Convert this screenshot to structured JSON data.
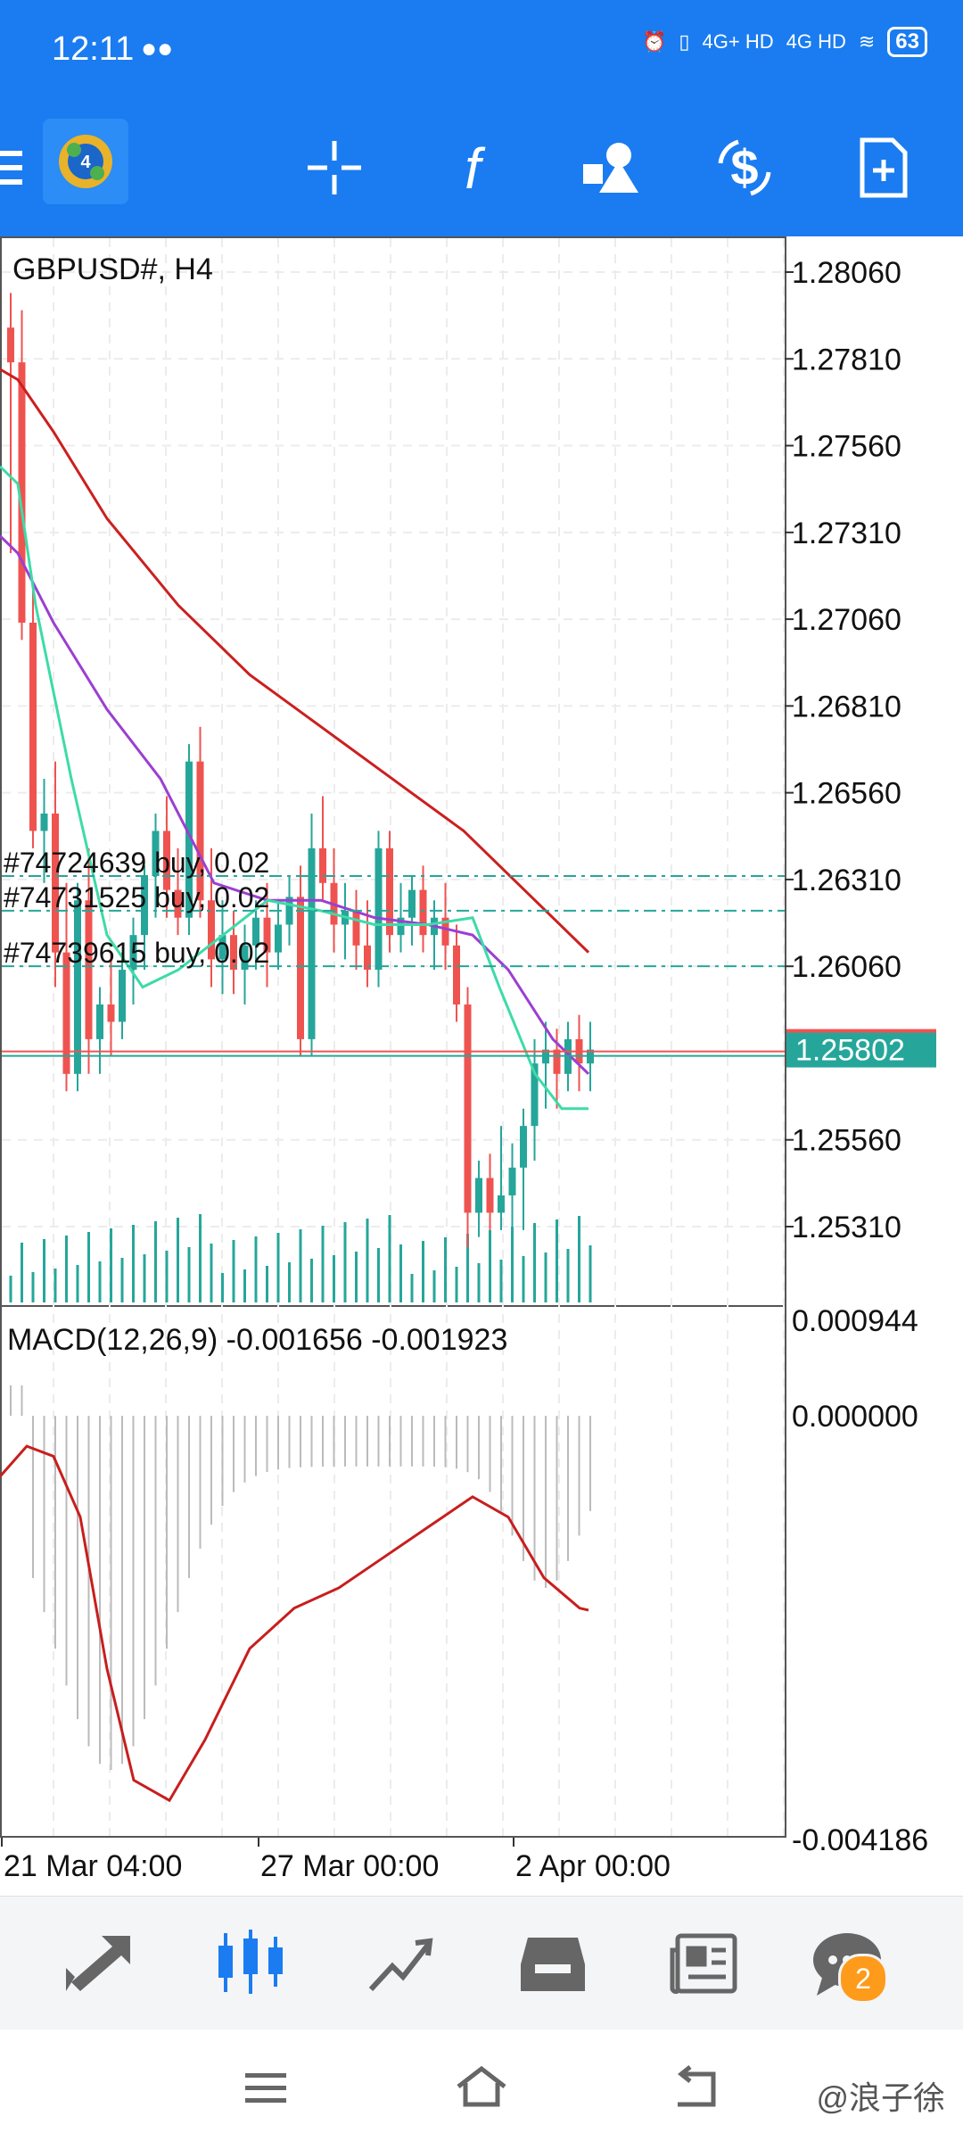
{
  "status_bar": {
    "time": "12:11",
    "network1": "4G+ HD",
    "network2": "4G HD",
    "battery": "63"
  },
  "chart": {
    "symbol_label": "GBPUSD#, H4",
    "price_ticks": [
      "1.28060",
      "1.27810",
      "1.27560",
      "1.27310",
      "1.27060",
      "1.26810",
      "1.26560",
      "1.26310",
      "1.26060",
      "1.25560",
      "1.25310"
    ],
    "current_price": "1.25802",
    "orders": [
      {
        "label": "#74724639 buy, 0.02"
      },
      {
        "label": "#74731525 buy, 0.02"
      },
      {
        "label": "#74739615 buy, 0.02"
      }
    ],
    "macd_label": "MACD(12,26,9)  -0.001656  -0.001923",
    "macd_ticks": [
      "0.000944",
      "0.000000",
      "-0.004186"
    ],
    "time_ticks": [
      "21 Mar 04:00",
      "27 Mar 00:00",
      "2 Apr 00:00"
    ],
    "colors": {
      "bull": "#26a69a",
      "bear": "#ef5350",
      "ma_slow": "#cc1f1f",
      "ma_mid": "#9b3fd1",
      "ma_fast": "#3ddba8",
      "macd_signal": "#c81e1e"
    }
  },
  "bottom_nav": {
    "messages_badge": "2"
  },
  "watermark": "@浪子徐"
}
